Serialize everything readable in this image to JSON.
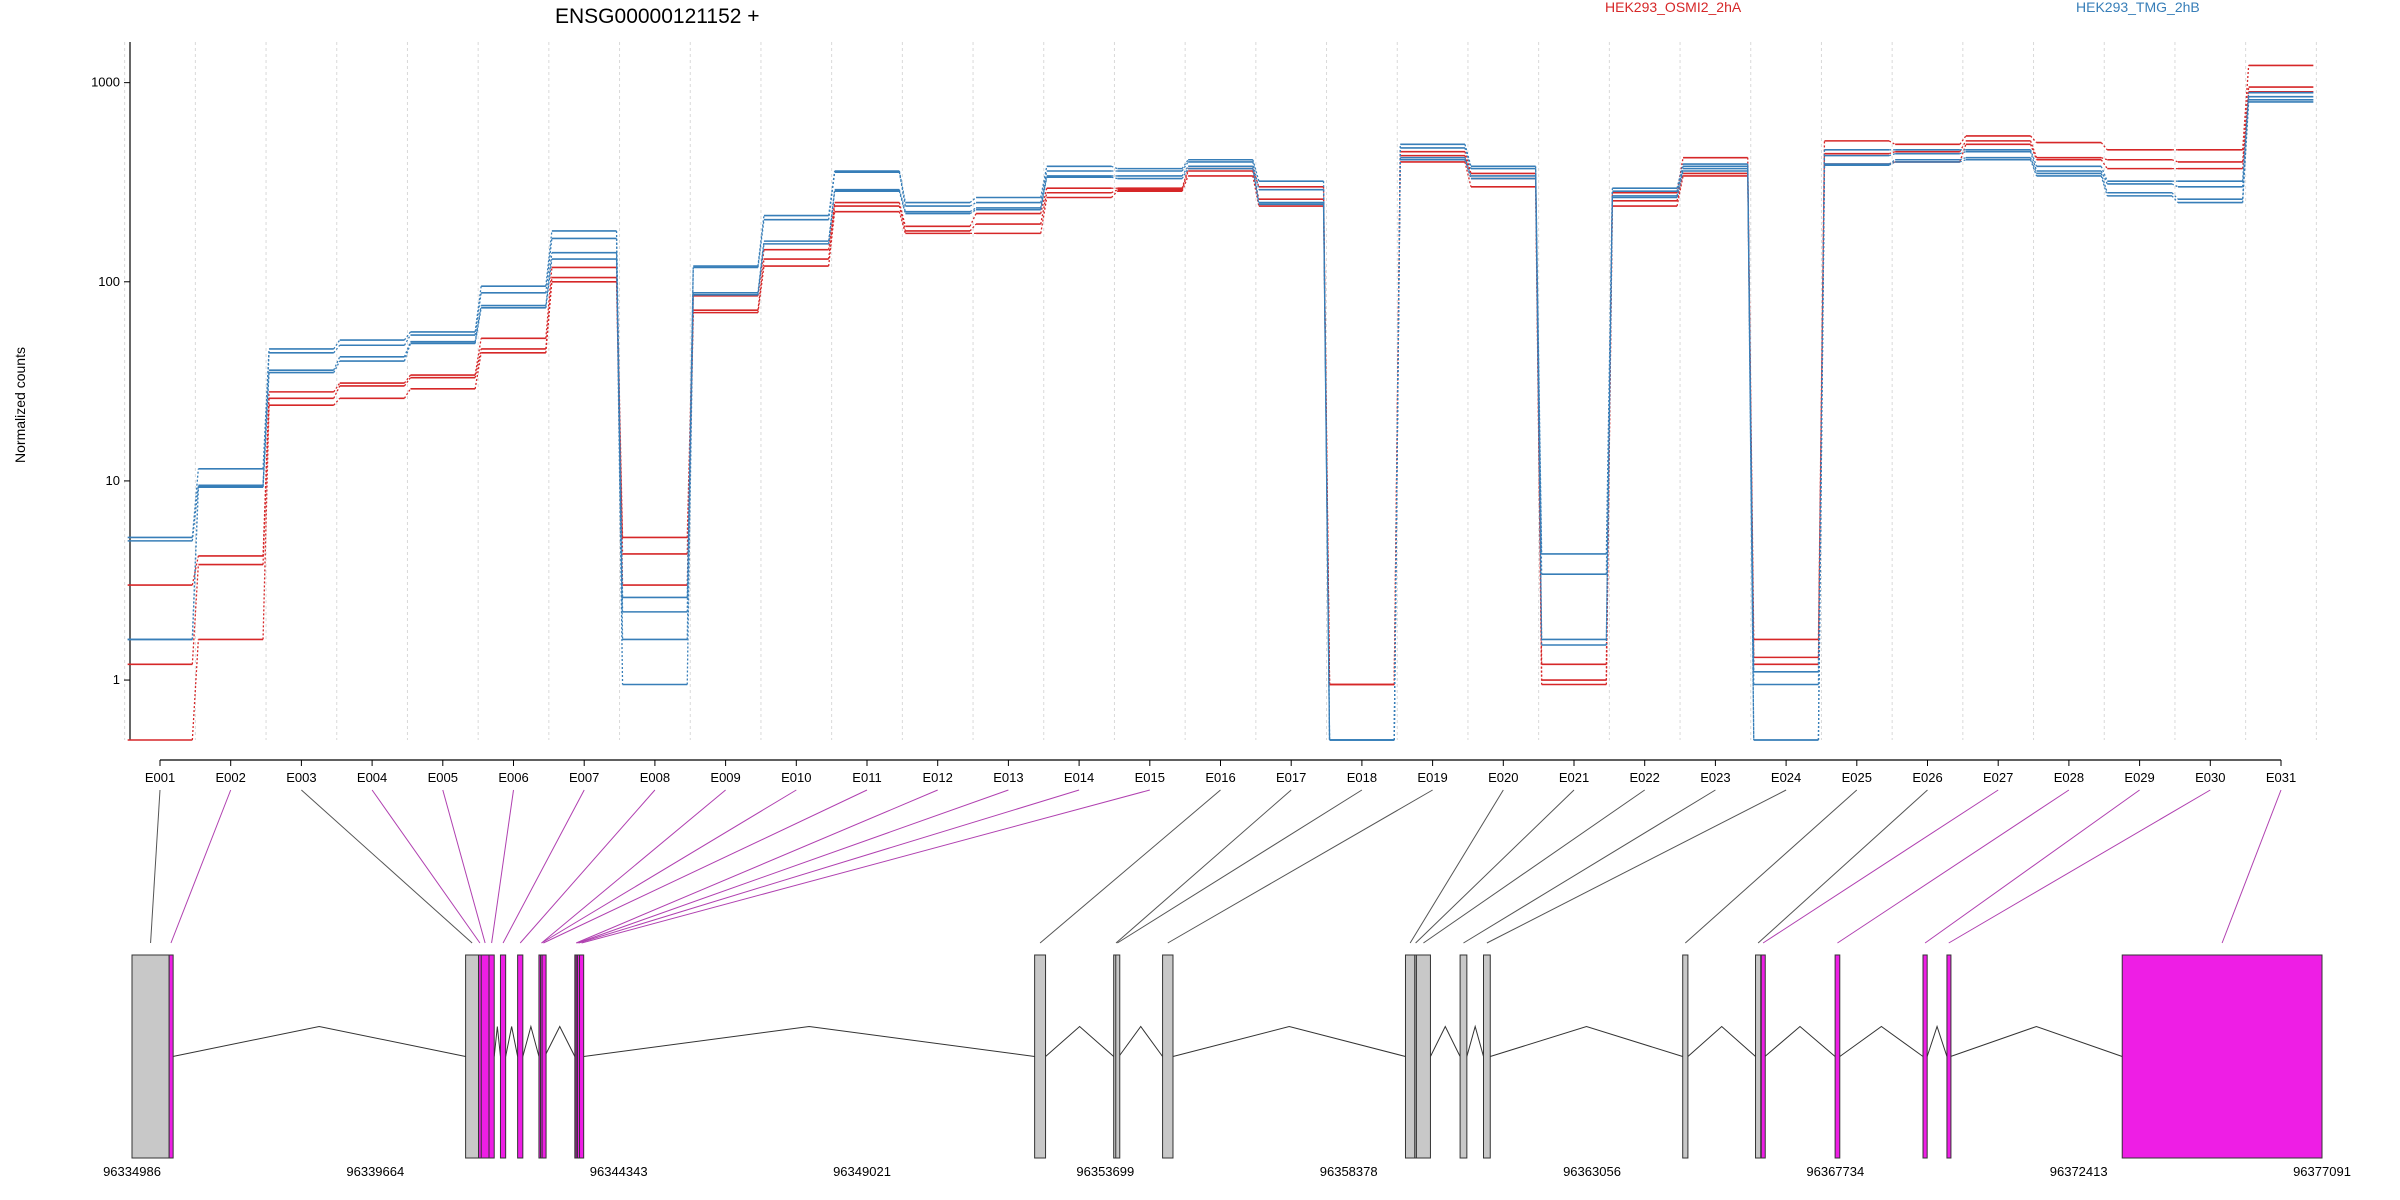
{
  "header": {
    "title": "ENSG00000121152 +",
    "legend": [
      "HEK293_OSMI2_2hA",
      "HEK293_TMG_2hB"
    ]
  },
  "colors": {
    "osmi": "#d62728",
    "tmg": "#377eb8",
    "exon_highlight": "#ee1ee5",
    "exon_plain": "#c8c8c8"
  },
  "chart_data": [
    {
      "type": "line",
      "title": "ENSG00000121152 +",
      "xlabel": "",
      "ylabel": "Normalized counts",
      "yscale": "log",
      "ylim": [
        0.5,
        1600
      ],
      "yticks": [
        1,
        10,
        100,
        1000
      ],
      "ytick_labels": [
        "1",
        "10",
        "100",
        "1000"
      ],
      "grid": true,
      "legend_position": "top",
      "categories": [
        "E001",
        "E002",
        "E003",
        "E004",
        "E005",
        "E006",
        "E007",
        "E008",
        "E009",
        "E010",
        "E011",
        "E012",
        "E013",
        "E014",
        "E015",
        "E016",
        "E017",
        "E018",
        "E019",
        "E020",
        "E021",
        "E022",
        "E023",
        "E024",
        "E025",
        "E026",
        "E027",
        "E028",
        "E029",
        "E030",
        "E031"
      ],
      "series": [
        {
          "name": "HEK293_OSMI2_2hA",
          "color": "#d62728",
          "values": [
            3.0,
            4.2,
            28,
            31,
            34,
            52,
            118,
            5.2,
            85,
            145,
            250,
            190,
            220,
            295,
            295,
            370,
            300,
            0.95,
            450,
            350,
            1.2,
            280,
            420,
            1.6,
            510,
            490,
            540,
            500,
            460,
            460,
            1220
          ]
        },
        {
          "name": "HEK293_OSMI2_2hA",
          "color": "#d62728",
          "values": [
            1.2,
            3.8,
            26,
            30,
            33,
            46,
            105,
            4.3,
            72,
            130,
            240,
            180,
            195,
            280,
            290,
            360,
            260,
            0.95,
            430,
            330,
            1.0,
            255,
            350,
            1.3,
            440,
            450,
            510,
            420,
            410,
            400,
            950
          ]
        },
        {
          "name": "HEK293_OSMI2_2hA",
          "color": "#d62728",
          "values": [
            0.5,
            1.6,
            24,
            26,
            29,
            44,
            100,
            3.0,
            70,
            120,
            225,
            175,
            175,
            265,
            285,
            340,
            240,
            0.95,
            400,
            300,
            0.95,
            240,
            340,
            1.2,
            390,
            400,
            490,
            410,
            370,
            370,
            900
          ]
        },
        {
          "name": "HEK293_TMG_2hB",
          "color": "#377eb8",
          "values": [
            5.2,
            11.5,
            46,
            51,
            56,
            95,
            180,
            2.6,
            120,
            215,
            360,
            250,
            265,
            380,
            370,
            410,
            320,
            0.5,
            490,
            380,
            4.3,
            295,
            390,
            1.1,
            460,
            460,
            460,
            380,
            320,
            320,
            890
          ]
        },
        {
          "name": "HEK293_TMG_2hB",
          "color": "#377eb8",
          "values": [
            5.0,
            9.5,
            44,
            48,
            54,
            88,
            165,
            2.2,
            118,
            205,
            355,
            240,
            250,
            360,
            360,
            400,
            290,
            0.5,
            470,
            370,
            3.4,
            285,
            380,
            0.95,
            430,
            440,
            450,
            360,
            310,
            300,
            850
          ]
        },
        {
          "name": "HEK293_TMG_2hB",
          "color": "#377eb8",
          "values": [
            1.6,
            9.4,
            36,
            42,
            50,
            76,
            140,
            1.6,
            88,
            160,
            290,
            225,
            235,
            340,
            340,
            380,
            250,
            0.5,
            420,
            340,
            1.6,
            270,
            370,
            0.5,
            390,
            410,
            420,
            350,
            280,
            260,
            820
          ]
        },
        {
          "name": "HEK293_TMG_2hB",
          "color": "#377eb8",
          "values": [
            1.6,
            9.3,
            35,
            40,
            49,
            74,
            130,
            0.95,
            86,
            155,
            285,
            220,
            230,
            335,
            330,
            370,
            245,
            0.5,
            410,
            330,
            1.5,
            265,
            360,
            0.5,
            385,
            400,
            410,
            340,
            270,
            250,
            800
          ]
        }
      ]
    },
    {
      "type": "table",
      "title": "",
      "xlabel": "",
      "ylabel": "",
      "genomic_start": 96334986,
      "genomic_end": 96377091,
      "tick_labels": [
        "96334986",
        "96339664",
        "96344343",
        "96349021",
        "96353699",
        "96358378",
        "96363056",
        "96367734",
        "96372413",
        "96377091"
      ],
      "tick_values": [
        96334986,
        96339664,
        96344343,
        96349021,
        96353699,
        96358378,
        96363056,
        96367734,
        96372413,
        96377091
      ],
      "exons": [
        {
          "id": "E001",
          "start": 96334986,
          "end": 96335700,
          "highlight": false
        },
        {
          "id": "E002",
          "start": 96335700,
          "end": 96335770,
          "highlight": true
        },
        {
          "id": "E003",
          "start": 96341400,
          "end": 96341650,
          "highlight": false
        },
        {
          "id": "E004",
          "start": 96341650,
          "end": 96341700,
          "highlight": true
        },
        {
          "id": "E005",
          "start": 96341700,
          "end": 96341850,
          "highlight": true
        },
        {
          "id": "E006",
          "start": 96341850,
          "end": 96341950,
          "highlight": true
        },
        {
          "id": "E007",
          "start": 96342070,
          "end": 96342170,
          "highlight": true
        },
        {
          "id": "E008",
          "start": 96342400,
          "end": 96342500,
          "highlight": true
        },
        {
          "id": "E009",
          "start": 96342810,
          "end": 96342910,
          "highlight": true
        },
        {
          "id": "E010",
          "start": 96342840,
          "end": 96342880,
          "highlight": true
        },
        {
          "id": "E011",
          "start": 96342870,
          "end": 96342920,
          "highlight": true
        },
        {
          "id": "E012",
          "start": 96343500,
          "end": 96343550,
          "highlight": true
        },
        {
          "id": "E013",
          "start": 96343525,
          "end": 96343575,
          "highlight": true
        },
        {
          "id": "E014",
          "start": 96343550,
          "end": 96343600,
          "highlight": true
        },
        {
          "id": "E015",
          "start": 96343590,
          "end": 96343670,
          "highlight": true
        },
        {
          "id": "E016",
          "start": 96352340,
          "end": 96352550,
          "highlight": false
        },
        {
          "id": "E017",
          "start": 96353860,
          "end": 96353950,
          "highlight": false
        },
        {
          "id": "E018",
          "start": 96353900,
          "end": 96353960,
          "highlight": false
        },
        {
          "id": "E019",
          "start": 96354800,
          "end": 96355000,
          "highlight": false
        },
        {
          "id": "E020",
          "start": 96359470,
          "end": 96359650,
          "highlight": false
        },
        {
          "id": "E021",
          "start": 96359650,
          "end": 96359680,
          "highlight": false
        },
        {
          "id": "E022",
          "start": 96359680,
          "end": 96359950,
          "highlight": false
        },
        {
          "id": "E023",
          "start": 96360520,
          "end": 96360650,
          "highlight": false
        },
        {
          "id": "E024",
          "start": 96360970,
          "end": 96361100,
          "highlight": false
        },
        {
          "id": "E025",
          "start": 96364800,
          "end": 96364900,
          "highlight": false
        },
        {
          "id": "E026",
          "start": 96366200,
          "end": 96366300,
          "highlight": false
        },
        {
          "id": "E027",
          "start": 96366310,
          "end": 96366380,
          "highlight": true
        },
        {
          "id": "E028",
          "start": 96367730,
          "end": 96367820,
          "highlight": true
        },
        {
          "id": "E029",
          "start": 96369420,
          "end": 96369500,
          "highlight": true
        },
        {
          "id": "E030",
          "start": 96369880,
          "end": 96369950,
          "highlight": true
        },
        {
          "id": "E031",
          "start": 96373250,
          "end": 96377091,
          "highlight": true
        }
      ]
    }
  ]
}
